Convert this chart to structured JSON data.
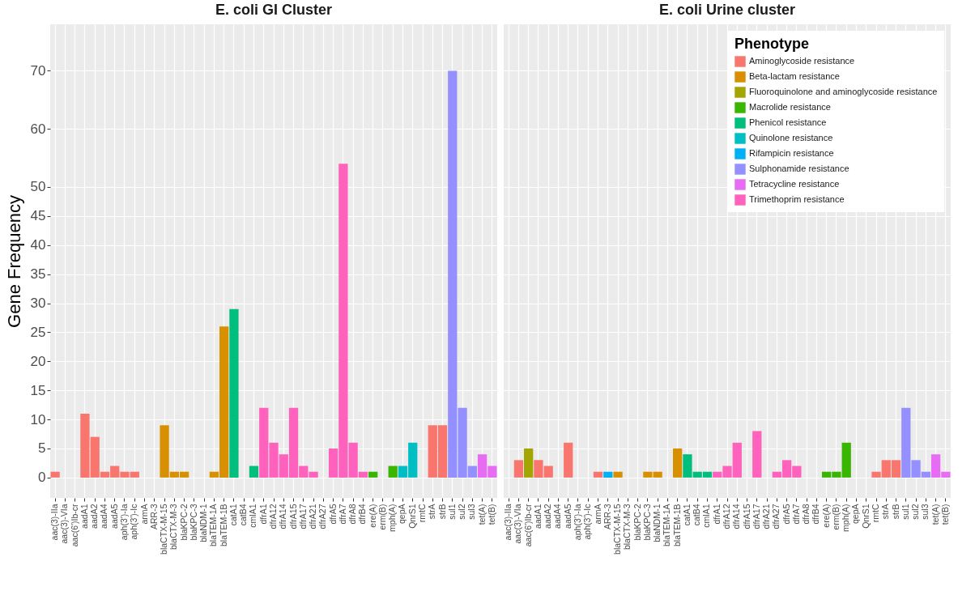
{
  "chart_data": [
    {
      "type": "bar",
      "title": "E. coli GI Cluster",
      "ylabel": "Gene Frequency",
      "grid": true,
      "ylim": [
        -3.5,
        78
      ],
      "yticks": [
        0,
        5,
        10,
        15,
        20,
        25,
        30,
        35,
        40,
        45,
        50,
        60,
        70
      ],
      "categories": [
        "aac(3)-IIa",
        "aac(3)-VIa",
        "aac(6')Ib-cr",
        "aadA1",
        "aadA2",
        "aadA4",
        "aadA5",
        "aph(3')-Ia",
        "aph(3')-Ic",
        "armA",
        "ARR-3",
        "blaCTX-M-15",
        "blaCTX-M-3",
        "blaKPC-2",
        "blaKPC-3",
        "blaNDM-1",
        "blaTEM-1A",
        "blaTEM-1B",
        "catA1",
        "catB4",
        "cmlA1",
        "dfrA1",
        "dfrA12",
        "dfrA14",
        "dfrA15",
        "dfrA17",
        "dfrA21",
        "dfrA27",
        "dfrA5",
        "dfrA7",
        "dfrA8",
        "dfrB4",
        "ere(A)",
        "erm(B)",
        "mph(A)",
        "qepA",
        "QnrS1",
        "rmtC",
        "strA",
        "strB",
        "sul1",
        "sul2",
        "sul3",
        "tet(A)",
        "tet(B)"
      ],
      "series": [
        {
          "color": "#f8766d",
          "values": [
            1,
            null,
            null,
            11,
            7,
            1,
            2,
            1,
            1,
            null,
            null,
            null,
            null,
            null,
            null,
            null,
            null,
            null,
            null,
            null,
            null,
            null,
            null,
            null,
            null,
            null,
            null,
            null,
            null,
            null,
            null,
            null,
            null,
            null,
            null,
            null,
            null,
            null,
            9,
            9,
            null,
            null,
            null,
            null,
            null
          ]
        },
        {
          "color": "#d89000",
          "values": [
            null,
            null,
            null,
            null,
            null,
            null,
            null,
            null,
            null,
            null,
            null,
            9,
            1,
            1,
            null,
            null,
            1,
            26,
            null,
            null,
            null,
            null,
            null,
            null,
            null,
            null,
            null,
            null,
            null,
            null,
            null,
            null,
            null,
            null,
            null,
            null,
            null,
            null,
            null,
            null,
            null,
            null,
            null,
            null,
            null
          ]
        },
        {
          "color": "#39b600",
          "values": [
            null,
            null,
            null,
            null,
            null,
            null,
            null,
            null,
            null,
            null,
            null,
            null,
            null,
            null,
            null,
            null,
            null,
            null,
            null,
            null,
            null,
            null,
            null,
            null,
            null,
            null,
            null,
            null,
            null,
            null,
            null,
            null,
            1,
            null,
            2,
            null,
            null,
            null,
            null,
            null,
            null,
            null,
            null,
            null,
            null
          ]
        },
        {
          "color": "#00bf7d",
          "values": [
            null,
            null,
            null,
            null,
            null,
            null,
            null,
            null,
            null,
            null,
            null,
            null,
            null,
            null,
            null,
            null,
            null,
            null,
            29,
            null,
            2,
            null,
            null,
            null,
            null,
            null,
            null,
            null,
            null,
            null,
            null,
            null,
            null,
            null,
            null,
            null,
            null,
            null,
            null,
            null,
            null,
            null,
            null,
            null,
            null
          ]
        },
        {
          "color": "#00bfc4",
          "values": [
            null,
            null,
            null,
            null,
            null,
            null,
            null,
            null,
            null,
            null,
            null,
            null,
            null,
            null,
            null,
            null,
            null,
            null,
            null,
            null,
            null,
            null,
            null,
            null,
            null,
            null,
            null,
            null,
            null,
            null,
            null,
            null,
            null,
            null,
            null,
            2,
            6,
            null,
            null,
            null,
            null,
            null,
            null,
            null,
            null
          ]
        },
        {
          "color": "#9590ff",
          "values": [
            null,
            null,
            null,
            null,
            null,
            null,
            null,
            null,
            null,
            null,
            null,
            null,
            null,
            null,
            null,
            null,
            null,
            null,
            null,
            null,
            null,
            null,
            null,
            null,
            null,
            null,
            null,
            null,
            null,
            null,
            null,
            null,
            null,
            null,
            null,
            null,
            null,
            null,
            null,
            null,
            70,
            12,
            2,
            null,
            null
          ]
        },
        {
          "color": "#e76bf3",
          "values": [
            null,
            null,
            null,
            null,
            null,
            null,
            null,
            null,
            null,
            null,
            null,
            null,
            null,
            null,
            null,
            null,
            null,
            null,
            null,
            null,
            null,
            null,
            null,
            null,
            null,
            null,
            null,
            null,
            null,
            null,
            null,
            null,
            null,
            null,
            null,
            null,
            null,
            null,
            null,
            null,
            null,
            null,
            null,
            4,
            2
          ]
        },
        {
          "color": "#ff62bc",
          "values": [
            null,
            null,
            null,
            null,
            null,
            null,
            null,
            null,
            null,
            null,
            null,
            null,
            null,
            null,
            null,
            null,
            null,
            null,
            null,
            null,
            null,
            12,
            6,
            4,
            12,
            2,
            1,
            null,
            5,
            54,
            6,
            1,
            null,
            null,
            null,
            null,
            null,
            null,
            null,
            null,
            null,
            null,
            null,
            null,
            null
          ]
        }
      ]
    },
    {
      "type": "bar",
      "title": "E. coli Urine cluster",
      "grid": true,
      "tick_labels": "x",
      "legend": "top right",
      "legend_title": "Phenotype",
      "ylim": [
        -3.5,
        78
      ],
      "yticks": [
        0,
        5,
        10,
        15,
        20,
        25,
        30,
        35,
        40,
        45,
        50,
        60,
        70
      ],
      "categories": [
        "aac(3)-IIa",
        "aac(3)-VIa",
        "aac(6')Ib-cr",
        "aadA1",
        "aadA2",
        "aadA4",
        "aadA5",
        "aph(3')-Ia",
        "aph(3')-Ic",
        "armA",
        "ARR-3",
        "blaCTX-M-15",
        "blaCTX-M-3",
        "blaKPC-2",
        "blaKPC-3",
        "blaNDM-1",
        "blaTEM-1A",
        "blaTEM-1B",
        "catA1",
        "catB4",
        "cmlA1",
        "dfrA1",
        "dfrA12",
        "dfrA14",
        "dfrA15",
        "dfrA17",
        "dfrA21",
        "dfrA27",
        "dfrA5",
        "dfrA7",
        "dfrA8",
        "dfrB4",
        "ere(A)",
        "erm(B)",
        "mph(A)",
        "qepA",
        "QnrS1",
        "rmtC",
        "strA",
        "strB",
        "sul1",
        "sul2",
        "sul3",
        "tet(A)",
        "tet(B)"
      ],
      "series": [
        {
          "name": "Aminoglycoside resistance",
          "color": "#f8766d",
          "values": [
            null,
            3,
            null,
            3,
            2,
            null,
            6,
            null,
            null,
            1,
            null,
            null,
            null,
            null,
            null,
            null,
            null,
            null,
            null,
            null,
            null,
            null,
            null,
            null,
            null,
            null,
            null,
            null,
            null,
            null,
            null,
            null,
            null,
            null,
            null,
            null,
            null,
            1,
            3,
            3,
            null,
            null,
            null,
            null,
            null
          ]
        },
        {
          "name": "Beta-lactam resistance",
          "color": "#d89000",
          "values": [
            null,
            null,
            null,
            null,
            null,
            null,
            null,
            null,
            null,
            null,
            null,
            1,
            null,
            null,
            1,
            1,
            null,
            5,
            null,
            null,
            null,
            null,
            null,
            null,
            null,
            null,
            null,
            null,
            null,
            null,
            null,
            null,
            null,
            null,
            null,
            null,
            null,
            null,
            null,
            null,
            null,
            null,
            null,
            null,
            null
          ]
        },
        {
          "name": "Fluoroquinolone and aminoglycoside resistance",
          "color": "#a3a500",
          "values": [
            null,
            null,
            5,
            null,
            null,
            null,
            null,
            null,
            null,
            null,
            null,
            null,
            null,
            null,
            null,
            null,
            null,
            null,
            null,
            null,
            null,
            null,
            null,
            null,
            null,
            null,
            null,
            null,
            null,
            null,
            null,
            null,
            null,
            null,
            null,
            null,
            null,
            null,
            null,
            null,
            null,
            null,
            null,
            null,
            null
          ]
        },
        {
          "name": "Macrolide resistance",
          "color": "#39b600",
          "values": [
            null,
            null,
            null,
            null,
            null,
            null,
            null,
            null,
            null,
            null,
            null,
            null,
            null,
            null,
            null,
            null,
            null,
            null,
            null,
            null,
            null,
            null,
            null,
            null,
            null,
            null,
            null,
            null,
            null,
            null,
            null,
            null,
            1,
            1,
            6,
            null,
            null,
            null,
            null,
            null,
            null,
            null,
            null,
            null,
            null
          ]
        },
        {
          "name": "Phenicol resistance",
          "color": "#00bf7d",
          "values": [
            null,
            null,
            null,
            null,
            null,
            null,
            null,
            null,
            null,
            null,
            null,
            null,
            null,
            null,
            null,
            null,
            null,
            null,
            4,
            1,
            1,
            null,
            null,
            null,
            null,
            null,
            null,
            null,
            null,
            null,
            null,
            null,
            null,
            null,
            null,
            null,
            null,
            null,
            null,
            null,
            null,
            null,
            null,
            null,
            null
          ]
        },
        {
          "name": "Quinolone resistance",
          "color": "#00bfc4",
          "values": [
            null,
            null,
            null,
            null,
            null,
            null,
            null,
            null,
            null,
            null,
            null,
            null,
            null,
            null,
            null,
            null,
            null,
            null,
            null,
            null,
            null,
            null,
            null,
            null,
            null,
            null,
            null,
            null,
            null,
            null,
            null,
            null,
            null,
            null,
            null,
            null,
            null,
            null,
            null,
            null,
            null,
            null,
            null,
            null,
            null
          ]
        },
        {
          "name": "Rifampicin resistance",
          "color": "#00b0f6",
          "values": [
            null,
            null,
            null,
            null,
            null,
            null,
            null,
            null,
            null,
            null,
            1,
            null,
            null,
            null,
            null,
            null,
            null,
            null,
            null,
            null,
            null,
            null,
            null,
            null,
            null,
            null,
            null,
            null,
            null,
            null,
            null,
            null,
            null,
            null,
            null,
            null,
            null,
            null,
            null,
            null,
            null,
            null,
            null,
            null,
            null
          ]
        },
        {
          "name": "Sulphonamide resistance",
          "color": "#9590ff",
          "values": [
            null,
            null,
            null,
            null,
            null,
            null,
            null,
            null,
            null,
            null,
            null,
            null,
            null,
            null,
            null,
            null,
            null,
            null,
            null,
            null,
            null,
            null,
            null,
            null,
            null,
            null,
            null,
            null,
            null,
            null,
            null,
            null,
            null,
            null,
            null,
            null,
            null,
            null,
            null,
            null,
            12,
            3,
            1,
            null,
            null
          ]
        },
        {
          "name": "Tetracycline resistance",
          "color": "#e76bf3",
          "values": [
            null,
            null,
            null,
            null,
            null,
            null,
            null,
            null,
            null,
            null,
            null,
            null,
            null,
            null,
            null,
            null,
            null,
            null,
            null,
            null,
            null,
            null,
            null,
            null,
            null,
            null,
            null,
            null,
            null,
            null,
            null,
            null,
            null,
            null,
            null,
            null,
            null,
            null,
            null,
            null,
            null,
            null,
            null,
            4,
            1
          ]
        },
        {
          "name": "Trimethoprim resistance",
          "color": "#ff62bc",
          "values": [
            null,
            null,
            null,
            null,
            null,
            null,
            null,
            null,
            null,
            null,
            null,
            null,
            null,
            null,
            null,
            null,
            null,
            null,
            null,
            null,
            null,
            1,
            2,
            6,
            null,
            8,
            null,
            1,
            3,
            2,
            null,
            null,
            null,
            null,
            null,
            null,
            null,
            null,
            null,
            null,
            null,
            null,
            null,
            null,
            null
          ]
        }
      ]
    }
  ]
}
